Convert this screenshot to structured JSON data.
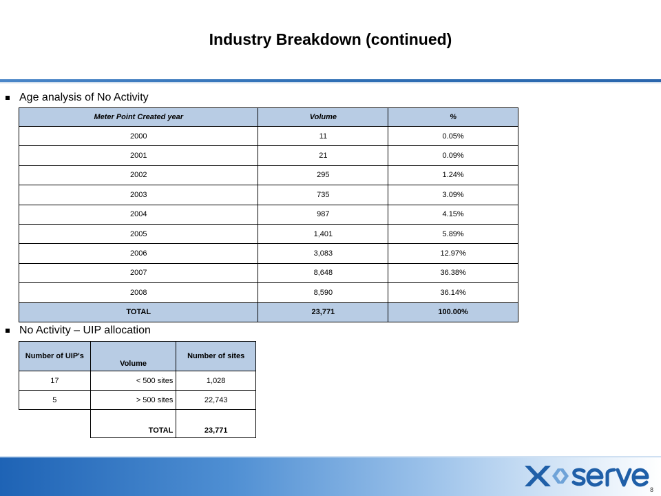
{
  "title": "Industry Breakdown (continued)",
  "section1": {
    "heading": "Age analysis of No Activity",
    "headers": [
      "Meter Point Created year",
      "Volume",
      "%"
    ],
    "rows": [
      [
        "2000",
        "11",
        "0.05%"
      ],
      [
        "2001",
        "21",
        "0.09%"
      ],
      [
        "2002",
        "295",
        "1.24%"
      ],
      [
        "2003",
        "735",
        "3.09%"
      ],
      [
        "2004",
        "987",
        "4.15%"
      ],
      [
        "2005",
        "1,401",
        "5.89%"
      ],
      [
        "2006",
        "3,083",
        "12.97%"
      ],
      [
        "2007",
        "8,648",
        "36.38%"
      ],
      [
        "2008",
        "8,590",
        "36.14%"
      ]
    ],
    "total": [
      "TOTAL",
      "23,771",
      "100.00%"
    ]
  },
  "section2": {
    "heading": "No Activity – UIP allocation",
    "headers": [
      "Number of UIP's",
      "Volume",
      "Number of sites"
    ],
    "rows": [
      [
        "17",
        "< 500 sites",
        "1,028"
      ],
      [
        "5",
        "> 500 sites",
        "22,743"
      ]
    ],
    "total": [
      "TOTAL",
      "23,771"
    ]
  },
  "footer": {
    "logo_icon": "xoserve-logo",
    "colors": {
      "accent": "#2f6fb5",
      "header_fill": "#b8cce4"
    }
  },
  "page_number": "8"
}
